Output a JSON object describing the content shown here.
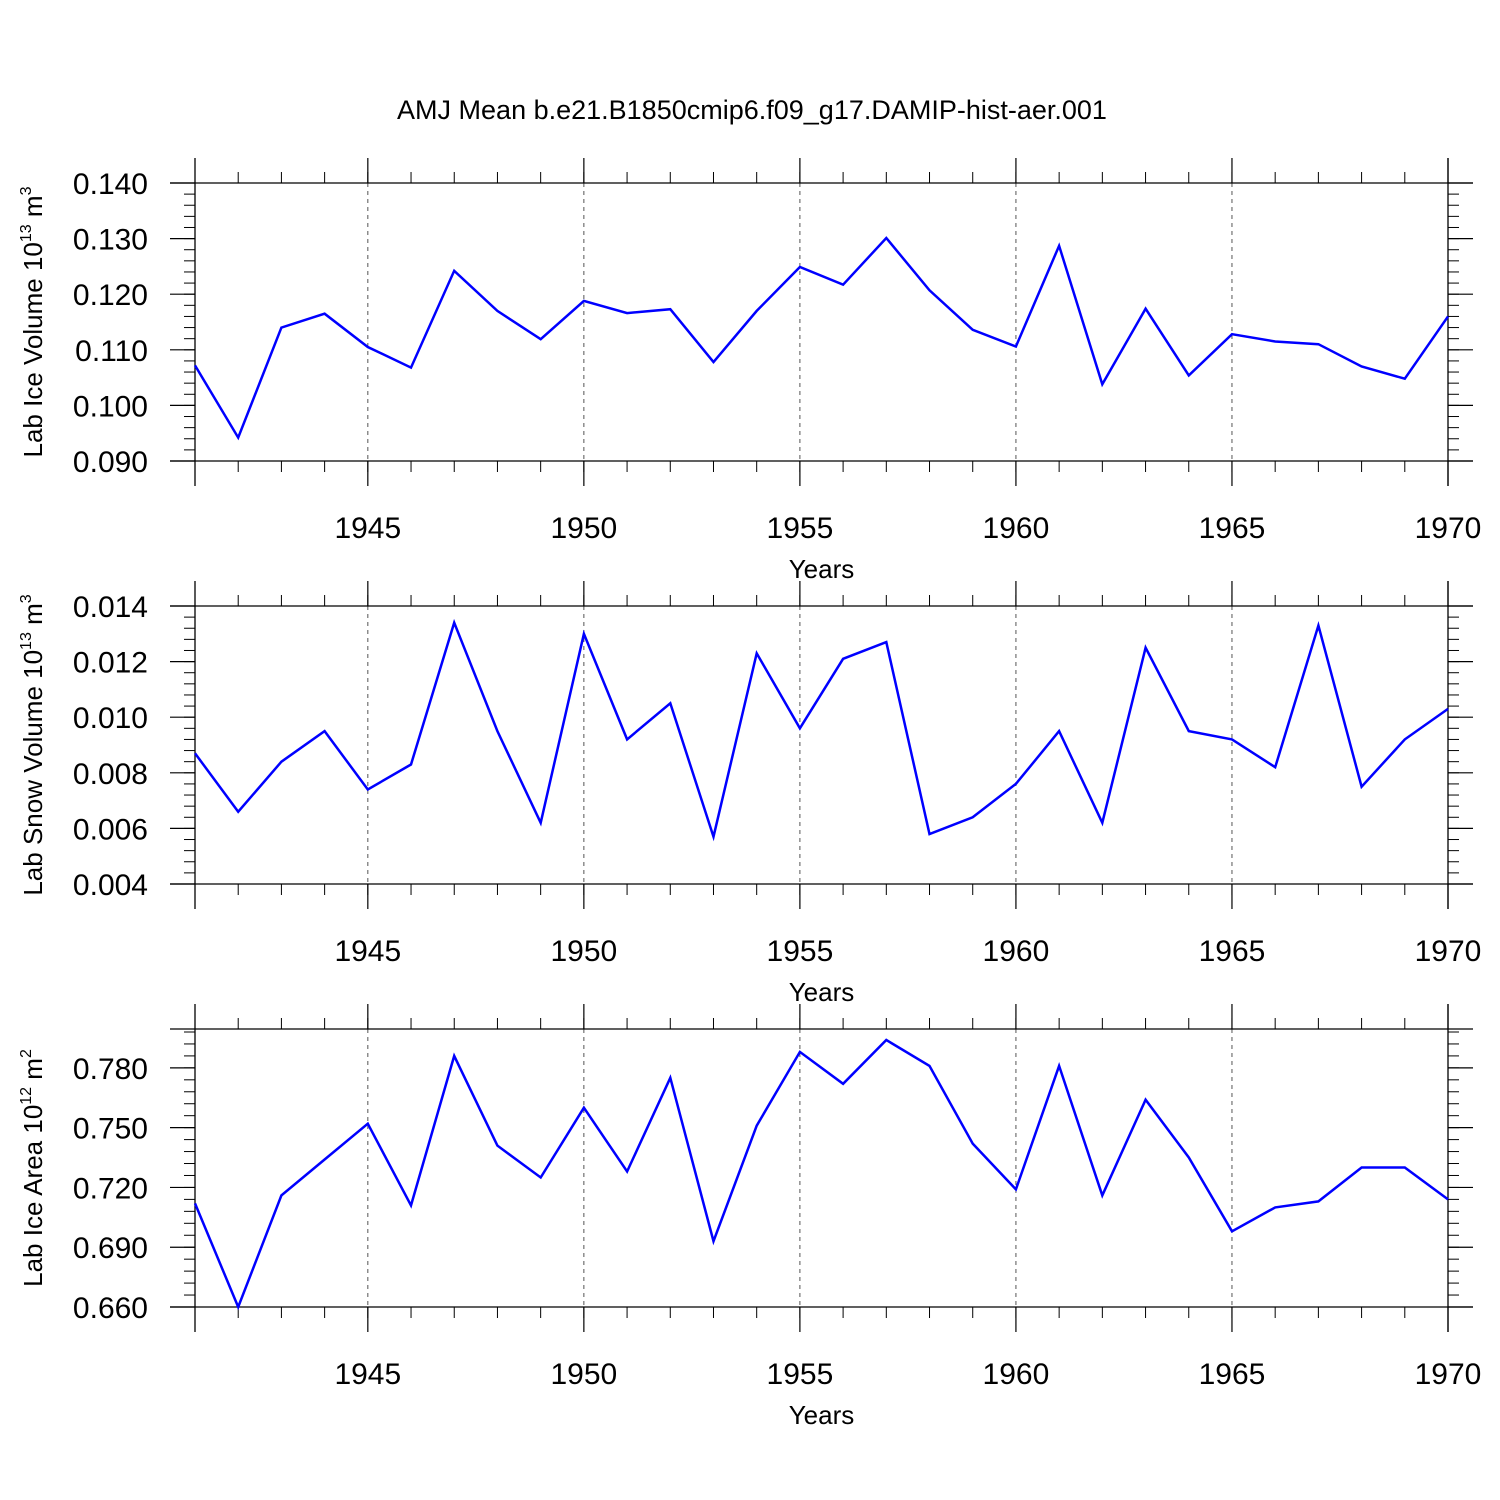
{
  "chart_data": {
    "title": "AMJ Mean b.e21.B1850cmip6.f09_g17.DAMIP-hist-aer.001",
    "line_color": "#0000ff",
    "panels": [
      {
        "type": "line",
        "ylabel_main": "Lab Ice Volume 10",
        "ylabel_exp": "13",
        "ylabel_unit": " m",
        "ylabel_unit_exp": "3",
        "xlabel": "Years",
        "xlim": [
          1941,
          1970
        ],
        "ylim": [
          0.09,
          0.14
        ],
        "yticks": [
          "0.090",
          "0.100",
          "0.110",
          "0.120",
          "0.130",
          "0.140"
        ],
        "xticks": [
          "1945",
          "1950",
          "1955",
          "1960",
          "1965",
          "1970"
        ],
        "x": [
          1941,
          1942,
          1943,
          1944,
          1945,
          1946,
          1947,
          1948,
          1949,
          1950,
          1951,
          1952,
          1953,
          1954,
          1955,
          1956,
          1957,
          1958,
          1959,
          1960,
          1961,
          1962,
          1963,
          1964,
          1965,
          1966,
          1967,
          1968,
          1969,
          1970
        ],
        "values": [
          0.1072,
          0.0942,
          0.114,
          0.1165,
          0.1105,
          0.1068,
          0.1242,
          0.117,
          0.1119,
          0.1188,
          0.1166,
          0.1173,
          0.1078,
          0.117,
          0.1249,
          0.1217,
          0.1301,
          0.1207,
          0.1136,
          0.1106,
          0.1287,
          0.1038,
          0.1174,
          0.1054,
          0.1128,
          0.1115,
          0.111,
          0.107,
          0.1048,
          0.116
        ]
      },
      {
        "type": "line",
        "ylabel_main": "Lab Snow Volume 10",
        "ylabel_exp": "13",
        "ylabel_unit": " m",
        "ylabel_unit_exp": "3",
        "xlabel": "Years",
        "xlim": [
          1941,
          1970
        ],
        "ylim": [
          0.004,
          0.014
        ],
        "yticks": [
          "0.004",
          "0.006",
          "0.008",
          "0.010",
          "0.012",
          "0.014"
        ],
        "xticks": [
          "1945",
          "1950",
          "1955",
          "1960",
          "1965",
          "1970"
        ],
        "x": [
          1941,
          1942,
          1943,
          1944,
          1945,
          1946,
          1947,
          1948,
          1949,
          1950,
          1951,
          1952,
          1953,
          1954,
          1955,
          1956,
          1957,
          1958,
          1959,
          1960,
          1961,
          1962,
          1963,
          1964,
          1965,
          1966,
          1967,
          1968,
          1969,
          1970
        ],
        "values": [
          0.0087,
          0.0066,
          0.0084,
          0.0095,
          0.0074,
          0.0083,
          0.0134,
          0.0095,
          0.0062,
          0.013,
          0.0092,
          0.0105,
          0.0057,
          0.0123,
          0.0096,
          0.0121,
          0.0127,
          0.0058,
          0.0064,
          0.0076,
          0.0095,
          0.0062,
          0.0125,
          0.0095,
          0.0092,
          0.0082,
          0.0133,
          0.0075,
          0.0092,
          0.0103
        ]
      },
      {
        "type": "line",
        "ylabel_main": "Lab Ice Area 10",
        "ylabel_exp": "12",
        "ylabel_unit": " m",
        "ylabel_unit_exp": "2",
        "xlabel": "Years",
        "xlim": [
          1941,
          1970
        ],
        "ylim": [
          0.66,
          0.7995
        ],
        "yticks": [
          "0.660",
          "0.690",
          "0.720",
          "0.750",
          "0.780"
        ],
        "ytick_values": [
          0.66,
          0.69,
          0.72,
          0.75,
          0.78
        ],
        "xticks": [
          "1945",
          "1950",
          "1955",
          "1960",
          "1965",
          "1970"
        ],
        "x": [
          1941,
          1942,
          1943,
          1944,
          1945,
          1946,
          1947,
          1948,
          1949,
          1950,
          1951,
          1952,
          1953,
          1954,
          1955,
          1956,
          1957,
          1958,
          1959,
          1960,
          1961,
          1962,
          1963,
          1964,
          1965,
          1966,
          1967,
          1968,
          1969,
          1970
        ],
        "values": [
          0.712,
          0.66,
          0.716,
          0.734,
          0.752,
          0.711,
          0.786,
          0.741,
          0.725,
          0.76,
          0.728,
          0.775,
          0.693,
          0.751,
          0.788,
          0.772,
          0.794,
          0.781,
          0.742,
          0.719,
          0.781,
          0.716,
          0.764,
          0.735,
          0.698,
          0.71,
          0.713,
          0.73,
          0.73,
          0.714
        ]
      }
    ]
  }
}
